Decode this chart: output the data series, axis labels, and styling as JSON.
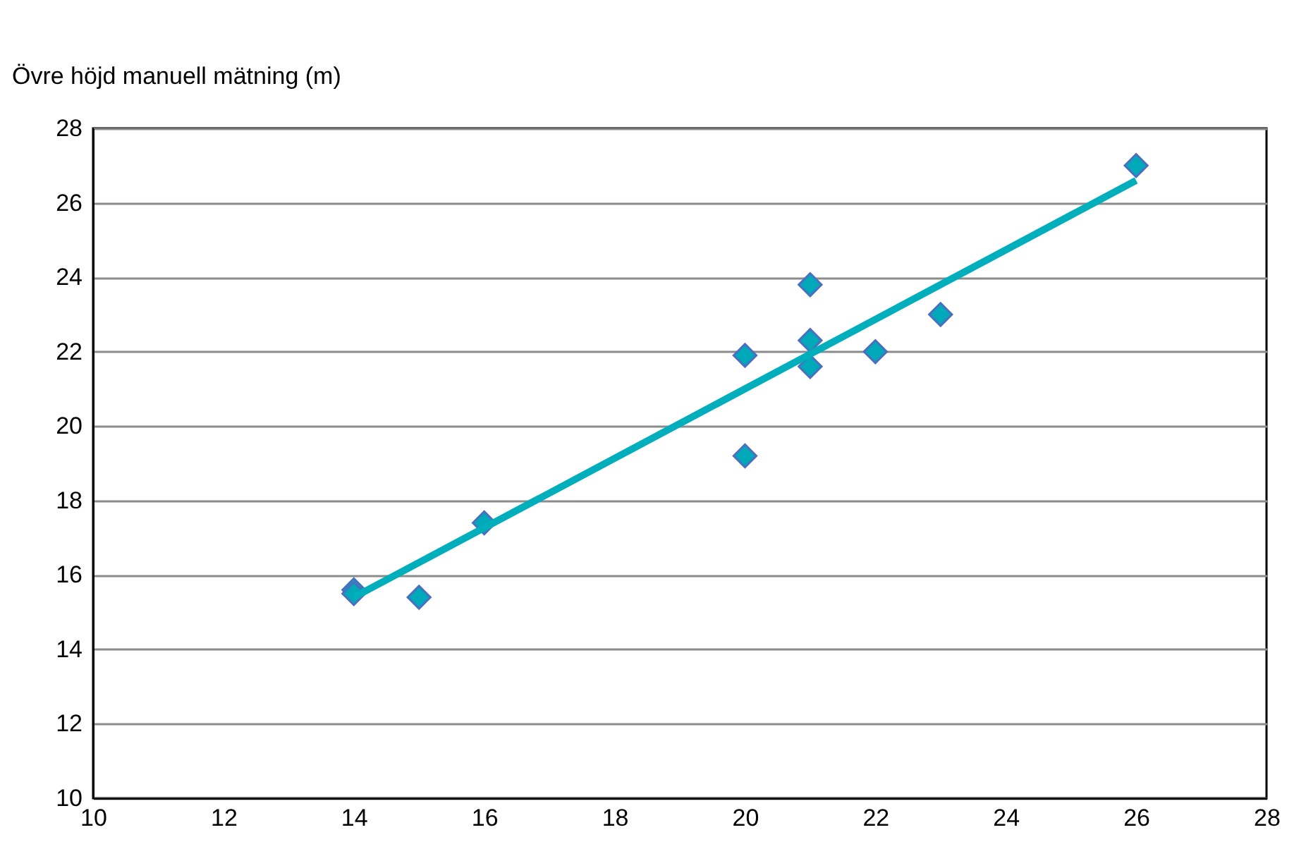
{
  "chart_data": {
    "type": "scatter",
    "ylabel": "Övre höjd manuell mätning (m)",
    "x": [
      14,
      14,
      15,
      16,
      20,
      20,
      21,
      21,
      21,
      22,
      23,
      26
    ],
    "series": [
      {
        "type": "scatter",
        "color": "#00a9b9",
        "marker": "diamond",
        "values": [
          15.6,
          15.5,
          15.4,
          17.4,
          21.9,
          19.2,
          23.8,
          22.3,
          21.6,
          22.0,
          23.0,
          27.0
        ]
      },
      {
        "type": "line",
        "color": "#00aebc",
        "marker": "none",
        "line_style": "solid",
        "x": [
          14,
          26
        ],
        "values": [
          15.4,
          26.6
        ]
      }
    ],
    "xlim": [
      10,
      28
    ],
    "xticks": [
      10,
      12,
      14,
      16,
      18,
      20,
      22,
      24,
      26,
      28
    ],
    "ylim": [
      10,
      28
    ],
    "yticks": [
      10,
      12,
      14,
      16,
      18,
      20,
      22,
      24,
      26,
      28
    ],
    "grid": "y"
  }
}
